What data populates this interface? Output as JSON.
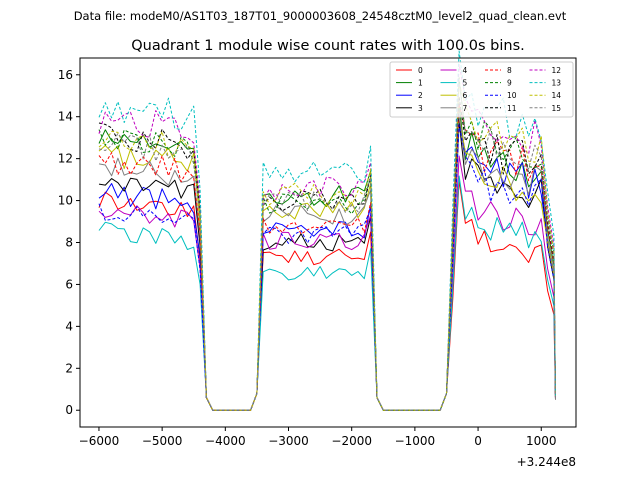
{
  "header": {
    "data_file": "Data file: modeM0/AS1T03_187T01_9000003608_24548cztM0_level2_quad_clean.evt"
  },
  "chart_data": {
    "type": "line",
    "title": "Quadrant 1 module wise count rates with 100.0s bins.",
    "xlabel": "",
    "ylabel": "",
    "x_offset_label": "+3.244e8",
    "xlim": [
      -6300,
      1550
    ],
    "ylim": [
      -0.8,
      16.8
    ],
    "x_ticks": [
      -6000,
      -5000,
      -4000,
      -3000,
      -2000,
      -1000,
      0,
      1000
    ],
    "x_tick_labels": [
      "−6000",
      "−5000",
      "−4000",
      "−3000",
      "−2000",
      "−1000",
      "0",
      "1000"
    ],
    "y_ticks": [
      0,
      2,
      4,
      6,
      8,
      10,
      12,
      14,
      16
    ],
    "y_tick_labels": [
      "0",
      "2",
      "4",
      "6",
      "8",
      "10",
      "12",
      "14",
      "16"
    ],
    "legend_position": "top-right",
    "segments": [
      {
        "start": -6000,
        "end": -4400
      },
      {
        "start": -3400,
        "end": -1700
      },
      {
        "start": -400,
        "end": 1100
      }
    ],
    "end_point": 1225,
    "series": [
      {
        "name": "0",
        "color": "#ff0000",
        "dash": false,
        "levels": [
          9.5,
          7.3,
          7.6
        ]
      },
      {
        "name": "1",
        "color": "#008000",
        "dash": false,
        "levels": [
          12.6,
          10.2,
          11.5
        ]
      },
      {
        "name": "2",
        "color": "#0000ff",
        "dash": false,
        "levels": [
          9.8,
          8.6,
          10.9
        ]
      },
      {
        "name": "3",
        "color": "#000000",
        "dash": false,
        "levels": [
          10.4,
          8.0,
          10.4
        ]
      },
      {
        "name": "4",
        "color": "#bf00bf",
        "dash": false,
        "levels": [
          9.0,
          8.1,
          9.0
        ]
      },
      {
        "name": "5",
        "color": "#00bfbf",
        "dash": false,
        "levels": [
          8.0,
          6.5,
          8.3
        ]
      },
      {
        "name": "6",
        "color": "#bfbf00",
        "dash": false,
        "levels": [
          11.7,
          9.6,
          10.7
        ]
      },
      {
        "name": "7",
        "color": "#808080",
        "dash": false,
        "levels": [
          11.0,
          9.3,
          11.0
        ]
      },
      {
        "name": "8",
        "color": "#ff0000",
        "dash": true,
        "levels": [
          11.3,
          8.7,
          11.7
        ]
      },
      {
        "name": "9",
        "color": "#008000",
        "dash": true,
        "levels": [
          12.4,
          9.9,
          12.4
        ]
      },
      {
        "name": "10",
        "color": "#0000ff",
        "dash": true,
        "levels": [
          8.9,
          8.4,
          10.4
        ]
      },
      {
        "name": "11",
        "color": "#000000",
        "dash": true,
        "levels": [
          12.5,
          10.0,
          12.0
        ]
      },
      {
        "name": "12",
        "color": "#bf00bf",
        "dash": true,
        "levels": [
          13.3,
          10.6,
          13.0
        ]
      },
      {
        "name": "13",
        "color": "#00bfbf",
        "dash": true,
        "levels": [
          14.0,
          11.4,
          13.9
        ]
      },
      {
        "name": "14",
        "color": "#bfbf00",
        "dash": true,
        "levels": [
          12.4,
          10.3,
          12.6
        ]
      },
      {
        "name": "15",
        "color": "#808080",
        "dash": true,
        "levels": [
          12.2,
          9.9,
          12.2
        ]
      }
    ]
  }
}
